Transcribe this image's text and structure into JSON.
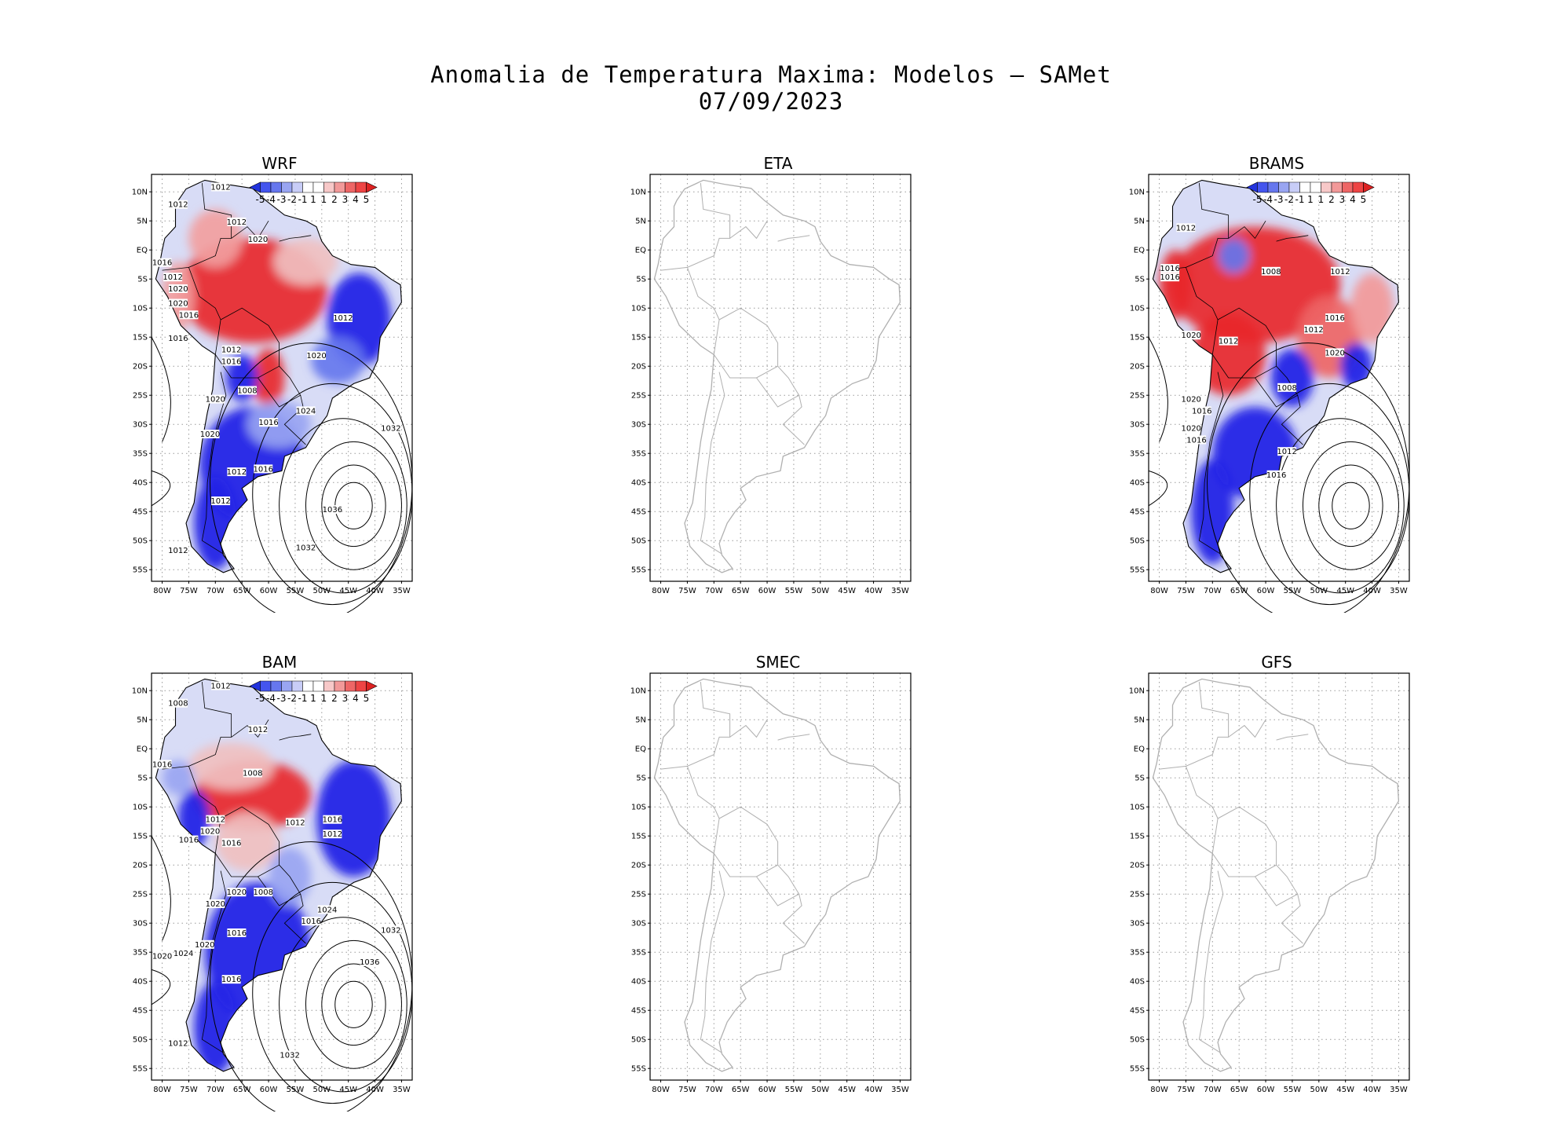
{
  "title": {
    "line1": "Anomalia de Temperatura Maxima: Modelos — SAMet",
    "line2": "07/09/2023"
  },
  "lat_labels": [
    "10N",
    "5N",
    "EQ",
    "5S",
    "10S",
    "15S",
    "20S",
    "25S",
    "30S",
    "35S",
    "40S",
    "45S",
    "50S",
    "55S"
  ],
  "lon_labels": [
    "80W",
    "75W",
    "70W",
    "65W",
    "60W",
    "55W",
    "50W",
    "45W",
    "40W",
    "35W"
  ],
  "colorbar": {
    "labels": [
      "-5",
      "-4",
      "-3",
      "-2",
      "-1",
      "1",
      "1",
      "2",
      "3",
      "4",
      "5"
    ],
    "colors": [
      "#2233dd",
      "#4455ee",
      "#6677ee",
      "#99a5f2",
      "#c8cdf7",
      "#ffffff",
      "#ffffff",
      "#f7c8c8",
      "#f29999",
      "#ee6666",
      "#ee4444",
      "#dd2222"
    ]
  },
  "colors": {
    "warm": "#e8272b",
    "cold": "#1f1fe6",
    "coast_empty": "#b0b0b0",
    "grid": "#9a9a9a"
  },
  "panels": [
    {
      "id": "wrf",
      "name": "WRF",
      "has_data": true,
      "isobars": [
        "1012",
        "1012",
        "1012",
        "1020",
        "1016",
        "1012",
        "1020",
        "1020",
        "1016",
        "1016",
        "1012",
        "1016",
        "1020",
        "1020",
        "1012",
        "1024",
        "1012",
        "1008",
        "1032",
        "1020",
        "1016",
        "1016",
        "1012",
        "1036",
        "1012",
        "1032"
      ]
    },
    {
      "id": "eta",
      "name": "ETA",
      "has_data": false,
      "isobars": []
    },
    {
      "id": "brams",
      "name": "BRAMS",
      "has_data": true,
      "isobars": [
        "1012",
        "1016",
        "1016",
        "1008",
        "1012",
        "1016",
        "1012",
        "1020",
        "1012",
        "1020",
        "1008",
        "1020",
        "1016",
        "1020",
        "1016",
        "1012",
        "1016"
      ]
    },
    {
      "id": "bam",
      "name": "BAM",
      "has_data": true,
      "isobars": [
        "1012",
        "1008",
        "1012",
        "1016",
        "1008",
        "1016",
        "1012",
        "1012",
        "1020",
        "1016",
        "1016",
        "1020",
        "1012",
        "1008",
        "1020",
        "1024",
        "1016",
        "1032",
        "1016",
        "1020",
        "1020",
        "1024",
        "1036",
        "1016",
        "1012",
        "1032"
      ]
    },
    {
      "id": "smec",
      "name": "SMEC",
      "has_data": false,
      "isobars": []
    },
    {
      "id": "gfs",
      "name": "GFS",
      "has_data": false,
      "isobars": []
    }
  ]
}
